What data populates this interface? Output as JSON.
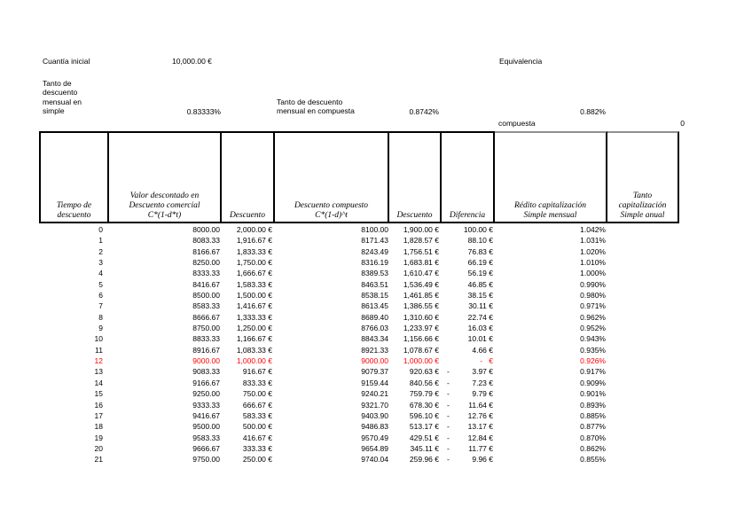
{
  "top": {
    "cuantia_label": "Cuantía inicial",
    "cuantia_value": "10,000.00 €",
    "equivalencia_label": "Equivalencia",
    "tanto_simple_label": "Tanto de\ndescuento\nmensual en\nsimple",
    "tanto_simple_value": "0.83333%",
    "tanto_compuesta_label": "Tanto de descuento\nmensual  en compuesta",
    "tanto_compuesta_value": "0.8742%",
    "equivalencia_value": "0.882%",
    "compuesta_label": "compuesta",
    "compuesta_value": "0"
  },
  "table": {
    "headers": [
      "Tiempo de\ndescuento",
      "Valor descontado en\nDescuento comercial\nC*(1-d*t)",
      "Descuento",
      "Descuento compuesto\nC*(1-d)^t",
      "Descuento",
      "Diferencia",
      "Rédito capitalización\nSimple mensual",
      "Tanto\ncapitalización\nSimple anual"
    ],
    "accent_red": "#ff0000",
    "rows": [
      {
        "t": "0",
        "comercial": "8000.00",
        "desc1": "2,000.00 €",
        "compuesto": "8100.00",
        "desc2": "1,900.00 €",
        "dif_minus": "",
        "dif": "100.00 €",
        "redito": "1.042%",
        "anual": "",
        "red": false
      },
      {
        "t": "1",
        "comercial": "8083.33",
        "desc1": "1,916.67 €",
        "compuesto": "8171.43",
        "desc2": "1,828.57 €",
        "dif_minus": "",
        "dif": "88.10 €",
        "redito": "1.031%",
        "anual": "",
        "red": false
      },
      {
        "t": "2",
        "comercial": "8166.67",
        "desc1": "1,833.33 €",
        "compuesto": "8243.49",
        "desc2": "1,756.51 €",
        "dif_minus": "",
        "dif": "76.83 €",
        "redito": "1.020%",
        "anual": "",
        "red": false
      },
      {
        "t": "3",
        "comercial": "8250.00",
        "desc1": "1,750.00 €",
        "compuesto": "8316.19",
        "desc2": "1,683.81 €",
        "dif_minus": "",
        "dif": "66.19 €",
        "redito": "1.010%",
        "anual": "",
        "red": false
      },
      {
        "t": "4",
        "comercial": "8333.33",
        "desc1": "1,666.67 €",
        "compuesto": "8389.53",
        "desc2": "1,610.47 €",
        "dif_minus": "",
        "dif": "56.19 €",
        "redito": "1.000%",
        "anual": "",
        "red": false
      },
      {
        "t": "5",
        "comercial": "8416.67",
        "desc1": "1,583.33 €",
        "compuesto": "8463.51",
        "desc2": "1,536.49 €",
        "dif_minus": "",
        "dif": "46.85 €",
        "redito": "0.990%",
        "anual": "",
        "red": false
      },
      {
        "t": "6",
        "comercial": "8500.00",
        "desc1": "1,500.00 €",
        "compuesto": "8538.15",
        "desc2": "1,461.85 €",
        "dif_minus": "",
        "dif": "38.15 €",
        "redito": "0.980%",
        "anual": "",
        "red": false
      },
      {
        "t": "7",
        "comercial": "8583.33",
        "desc1": "1,416.67 €",
        "compuesto": "8613.45",
        "desc2": "1,386.55 €",
        "dif_minus": "",
        "dif": "30.11 €",
        "redito": "0.971%",
        "anual": "",
        "red": false
      },
      {
        "t": "8",
        "comercial": "8666.67",
        "desc1": "1,333.33 €",
        "compuesto": "8689.40",
        "desc2": "1,310.60 €",
        "dif_minus": "",
        "dif": "22.74 €",
        "redito": "0.962%",
        "anual": "",
        "red": false
      },
      {
        "t": "9",
        "comercial": "8750.00",
        "desc1": "1,250.00 €",
        "compuesto": "8766.03",
        "desc2": "1,233.97 €",
        "dif_minus": "",
        "dif": "16.03 €",
        "redito": "0.952%",
        "anual": "",
        "red": false
      },
      {
        "t": "10",
        "comercial": "8833.33",
        "desc1": "1,166.67 €",
        "compuesto": "8843.34",
        "desc2": "1,156.66 €",
        "dif_minus": "",
        "dif": "10.01 €",
        "redito": "0.943%",
        "anual": "",
        "red": false
      },
      {
        "t": "11",
        "comercial": "8916.67",
        "desc1": "1,083.33 €",
        "compuesto": "8921.33",
        "desc2": "1,078.67 €",
        "dif_minus": "",
        "dif": "4.66 €",
        "redito": "0.935%",
        "anual": "",
        "red": false
      },
      {
        "t": "12",
        "comercial": "9000.00",
        "desc1": "1,000.00 €",
        "compuesto": "9000.00",
        "desc2": "1,000.00 €",
        "dif_minus": "",
        "dif": "-   €",
        "redito": "0.926%",
        "anual": "",
        "red": true
      },
      {
        "t": "13",
        "comercial": "9083.33",
        "desc1": "916.67 €",
        "compuesto": "9079.37",
        "desc2": "920.63 €",
        "dif_minus": "-",
        "dif": "3.97 €",
        "redito": "0.917%",
        "anual": "",
        "red": false
      },
      {
        "t": "14",
        "comercial": "9166.67",
        "desc1": "833.33 €",
        "compuesto": "9159.44",
        "desc2": "840.56 €",
        "dif_minus": "-",
        "dif": "7.23 €",
        "redito": "0.909%",
        "anual": "",
        "red": false
      },
      {
        "t": "15",
        "comercial": "9250.00",
        "desc1": "750.00 €",
        "compuesto": "9240.21",
        "desc2": "759.79 €",
        "dif_minus": "-",
        "dif": "9.79 €",
        "redito": "0.901%",
        "anual": "",
        "red": false
      },
      {
        "t": "16",
        "comercial": "9333.33",
        "desc1": "666.67 €",
        "compuesto": "9321.70",
        "desc2": "678.30 €",
        "dif_minus": "-",
        "dif": "11.64 €",
        "redito": "0.893%",
        "anual": "",
        "red": false
      },
      {
        "t": "17",
        "comercial": "9416.67",
        "desc1": "583.33 €",
        "compuesto": "9403.90",
        "desc2": "596.10 €",
        "dif_minus": "-",
        "dif": "12.76 €",
        "redito": "0.885%",
        "anual": "",
        "red": false
      },
      {
        "t": "18",
        "comercial": "9500.00",
        "desc1": "500.00 €",
        "compuesto": "9486.83",
        "desc2": "513.17 €",
        "dif_minus": "-",
        "dif": "13.17 €",
        "redito": "0.877%",
        "anual": "",
        "red": false
      },
      {
        "t": "19",
        "comercial": "9583.33",
        "desc1": "416.67 €",
        "compuesto": "9570.49",
        "desc2": "429.51 €",
        "dif_minus": "-",
        "dif": "12.84 €",
        "redito": "0.870%",
        "anual": "",
        "red": false
      },
      {
        "t": "20",
        "comercial": "9666.67",
        "desc1": "333.33 €",
        "compuesto": "9654.89",
        "desc2": "345.11 €",
        "dif_minus": "-",
        "dif": "11.77 €",
        "redito": "0.862%",
        "anual": "",
        "red": false
      },
      {
        "t": "21",
        "comercial": "9750.00",
        "desc1": "250.00 €",
        "compuesto": "9740.04",
        "desc2": "259.96 €",
        "dif_minus": "-",
        "dif": "9.96 €",
        "redito": "0.855%",
        "anual": "",
        "red": false
      }
    ]
  }
}
